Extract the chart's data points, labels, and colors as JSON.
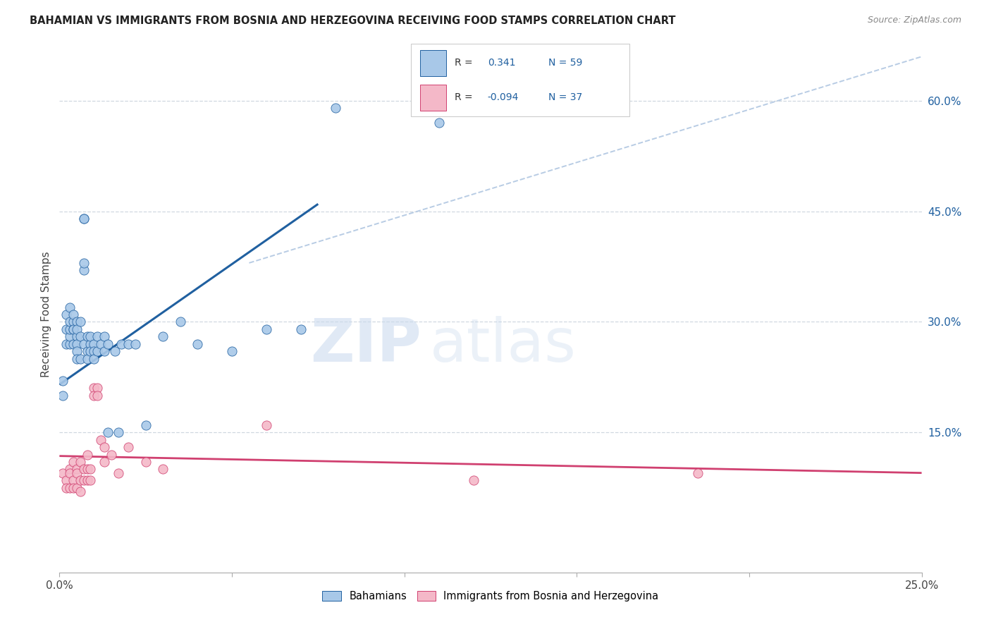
{
  "title": "BAHAMIAN VS IMMIGRANTS FROM BOSNIA AND HERZEGOVINA RECEIVING FOOD STAMPS CORRELATION CHART",
  "source": "Source: ZipAtlas.com",
  "ylabel": "Receiving Food Stamps",
  "ytick_values": [
    0.15,
    0.3,
    0.45,
    0.6
  ],
  "ytick_labels": [
    "15.0%",
    "30.0%",
    "45.0%",
    "60.0%"
  ],
  "xlim": [
    0.0,
    0.25
  ],
  "ylim": [
    -0.04,
    0.66
  ],
  "watermark_zip": "ZIP",
  "watermark_atlas": "atlas",
  "color_blue": "#a8c8e8",
  "color_pink": "#f4b8c8",
  "line_blue": "#2060a0",
  "line_pink": "#d04070",
  "line_dash": "#b8cce4",
  "grid_color": "#d0d8e0",
  "blue_scatter_x": [
    0.001,
    0.001,
    0.002,
    0.002,
    0.002,
    0.003,
    0.003,
    0.003,
    0.003,
    0.003,
    0.004,
    0.004,
    0.004,
    0.004,
    0.004,
    0.005,
    0.005,
    0.005,
    0.005,
    0.005,
    0.005,
    0.006,
    0.006,
    0.006,
    0.007,
    0.007,
    0.007,
    0.007,
    0.007,
    0.008,
    0.008,
    0.008,
    0.009,
    0.009,
    0.009,
    0.01,
    0.01,
    0.01,
    0.011,
    0.011,
    0.012,
    0.013,
    0.013,
    0.014,
    0.014,
    0.016,
    0.017,
    0.018,
    0.02,
    0.022,
    0.025,
    0.03,
    0.035,
    0.04,
    0.05,
    0.06,
    0.07,
    0.08,
    0.11
  ],
  "blue_scatter_y": [
    0.2,
    0.22,
    0.27,
    0.29,
    0.31,
    0.27,
    0.28,
    0.29,
    0.3,
    0.32,
    0.29,
    0.3,
    0.31,
    0.29,
    0.27,
    0.3,
    0.28,
    0.27,
    0.29,
    0.26,
    0.25,
    0.28,
    0.3,
    0.25,
    0.37,
    0.38,
    0.44,
    0.44,
    0.27,
    0.28,
    0.26,
    0.25,
    0.27,
    0.28,
    0.26,
    0.27,
    0.26,
    0.25,
    0.28,
    0.26,
    0.27,
    0.28,
    0.26,
    0.27,
    0.15,
    0.26,
    0.15,
    0.27,
    0.27,
    0.27,
    0.16,
    0.28,
    0.3,
    0.27,
    0.26,
    0.29,
    0.29,
    0.59,
    0.57
  ],
  "pink_scatter_x": [
    0.001,
    0.002,
    0.002,
    0.003,
    0.003,
    0.003,
    0.004,
    0.004,
    0.004,
    0.005,
    0.005,
    0.005,
    0.006,
    0.006,
    0.006,
    0.007,
    0.007,
    0.008,
    0.008,
    0.008,
    0.009,
    0.009,
    0.01,
    0.01,
    0.011,
    0.011,
    0.012,
    0.013,
    0.013,
    0.015,
    0.017,
    0.02,
    0.025,
    0.03,
    0.06,
    0.12,
    0.185
  ],
  "pink_scatter_y": [
    0.095,
    0.085,
    0.075,
    0.1,
    0.095,
    0.075,
    0.11,
    0.085,
    0.075,
    0.1,
    0.095,
    0.075,
    0.11,
    0.085,
    0.07,
    0.1,
    0.085,
    0.1,
    0.12,
    0.085,
    0.1,
    0.085,
    0.21,
    0.2,
    0.21,
    0.2,
    0.14,
    0.13,
    0.11,
    0.12,
    0.095,
    0.13,
    0.11,
    0.1,
    0.16,
    0.085,
    0.095
  ],
  "blue_line_x": [
    0.0,
    0.075
  ],
  "blue_line_y": [
    0.215,
    0.46
  ],
  "pink_line_x": [
    0.0,
    0.25
  ],
  "pink_line_y": [
    0.118,
    0.095
  ],
  "dash_line_x": [
    0.055,
    0.25
  ],
  "dash_line_y": [
    0.38,
    0.66
  ]
}
